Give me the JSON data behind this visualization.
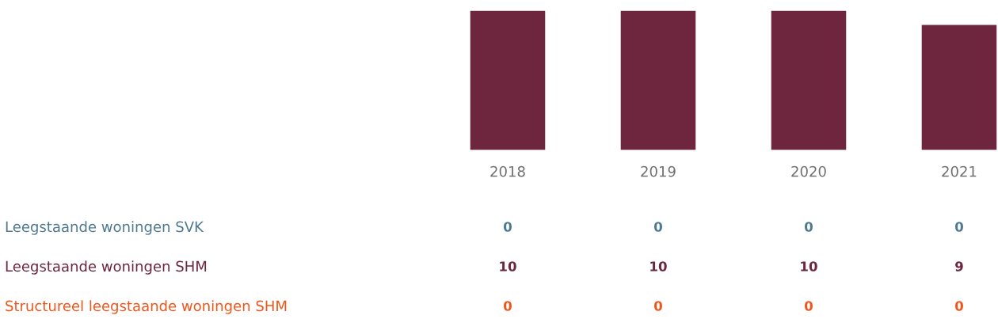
{
  "chart_data": {
    "type": "bar",
    "stacked": true,
    "categories": [
      "2018",
      "2019",
      "2020",
      "2021"
    ],
    "series": [
      {
        "name": "Leegstaande woningen SVK",
        "color": "#4d7890",
        "values": [
          0,
          0,
          0,
          0
        ]
      },
      {
        "name": "Leegstaande woningen SHM",
        "color": "#6e263f",
        "values": [
          10,
          10,
          10,
          9
        ]
      },
      {
        "name": "Structureel leegstaande woningen SHM",
        "color": "#f0561a",
        "values": [
          0,
          0,
          0,
          0
        ]
      }
    ],
    "data_labels": true,
    "legend": false,
    "grid": false
  }
}
